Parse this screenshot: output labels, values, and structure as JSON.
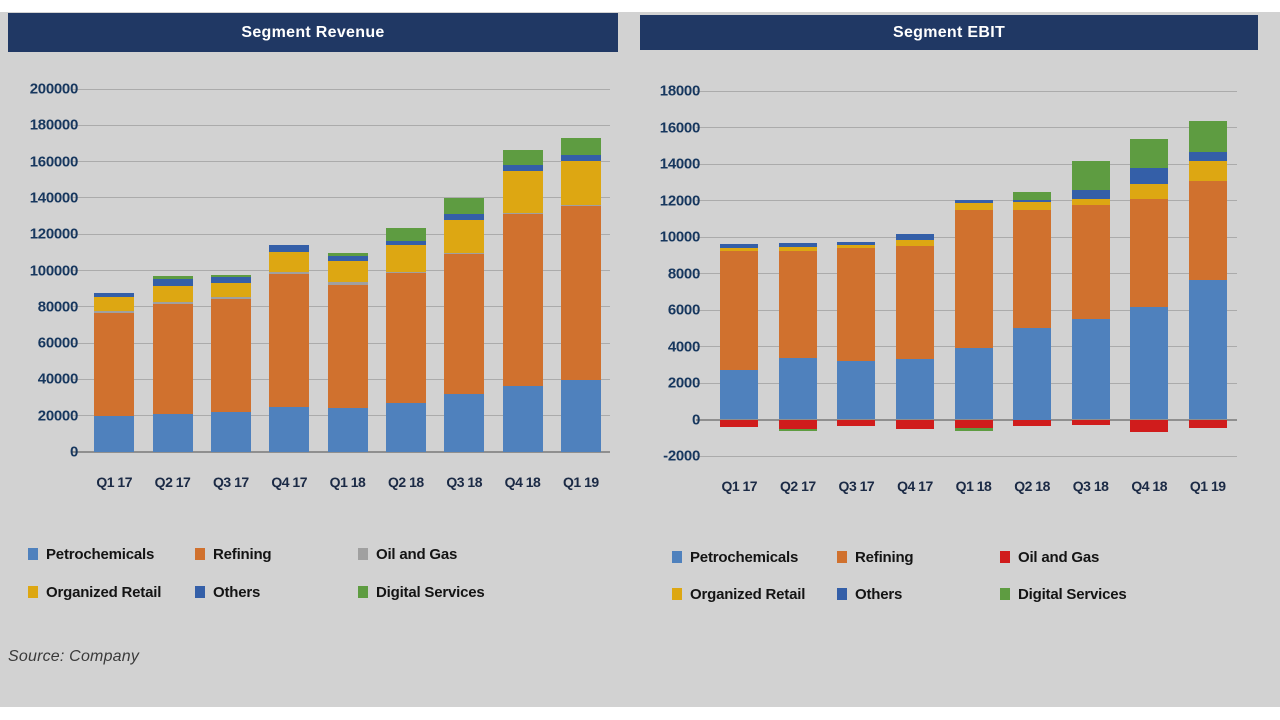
{
  "source_note": "Source: Company",
  "chart_data": [
    {
      "type": "bar",
      "stacked": true,
      "title": "Segment Revenue",
      "xlabel": "",
      "ylabel": "",
      "ylim": [
        0,
        200000
      ],
      "ytick_step": 20000,
      "grid": true,
      "legend_position": "bottom",
      "categories": [
        "Q1 17",
        "Q2 17",
        "Q3 17",
        "Q4 17",
        "Q1 18",
        "Q2 18",
        "Q3 18",
        "Q4 18",
        "Q1 19"
      ],
      "series": [
        {
          "name": "Petrochemicals",
          "color": "#4F81BD",
          "values": [
            20000,
            21000,
            22000,
            25000,
            24000,
            27000,
            32000,
            36500,
            39500
          ]
        },
        {
          "name": "Refining",
          "color": "#D0712E",
          "values": [
            56800,
            60400,
            62100,
            73300,
            68250,
            71500,
            77150,
            94600,
            96200
          ]
        },
        {
          "name": "Oil and Gas",
          "color": "#A0A0A0",
          "values": [
            1100,
            1400,
            1500,
            800,
            1450,
            800,
            500,
            500,
            500
          ]
        },
        {
          "name": "Organized Retail",
          "color": "#DDA712",
          "values": [
            7700,
            8700,
            7700,
            11200,
            11600,
            14600,
            18050,
            23100,
            24100
          ]
        },
        {
          "name": "Others",
          "color": "#345FA8",
          "values": [
            2200,
            3700,
            3300,
            4000,
            2600,
            2200,
            3500,
            3200,
            3200
          ]
        },
        {
          "name": "Digital Services",
          "color": "#5E9C41",
          "values": [
            0,
            1500,
            800,
            0,
            2000,
            7400,
            8600,
            8600,
            9700
          ]
        }
      ],
      "totals_approx": [
        87800,
        96700,
        97400,
        114300,
        109900,
        123500,
        139800,
        166500,
        173200
      ]
    },
    {
      "type": "bar",
      "stacked": true,
      "title": "Segment EBIT",
      "xlabel": "",
      "ylabel": "",
      "ylim": [
        -2000,
        18000
      ],
      "ytick_step": 2000,
      "grid": true,
      "legend_position": "bottom",
      "categories": [
        "Q1 17",
        "Q2 17",
        "Q3 17",
        "Q4 17",
        "Q1 18",
        "Q2 18",
        "Q3 18",
        "Q4 18",
        "Q1 19"
      ],
      "series": [
        {
          "name": "Petrochemicals",
          "color": "#4F81BD",
          "values": [
            2700,
            3350,
            3180,
            3290,
            3940,
            5000,
            5510,
            6180,
            7670
          ]
        },
        {
          "name": "Refining",
          "color": "#D0712E",
          "values": [
            6540,
            5905,
            6200,
            6220,
            7550,
            6490,
            6270,
            5910,
            5420
          ]
        },
        {
          "name": "Oil and Gas",
          "color": "#D01C1C",
          "values": [
            -400,
            -500,
            -350,
            -500,
            -450,
            -350,
            -300,
            -700,
            -450
          ]
        },
        {
          "name": "Organized Retail",
          "color": "#DDA712",
          "values": [
            175,
            215,
            180,
            340,
            360,
            420,
            320,
            820,
            1060
          ]
        },
        {
          "name": "Others",
          "color": "#345FA8",
          "values": [
            175,
            175,
            175,
            330,
            180,
            120,
            450,
            870,
            490
          ]
        },
        {
          "name": "Digital Services",
          "color": "#5E9C41",
          "values": [
            0,
            -150,
            0,
            0,
            -200,
            425,
            1600,
            1580,
            1710
          ]
        }
      ],
      "totals_positive_approx": [
        9590,
        9645,
        9735,
        10180,
        12030,
        12455,
        14150,
        15360,
        16350
      ]
    }
  ]
}
